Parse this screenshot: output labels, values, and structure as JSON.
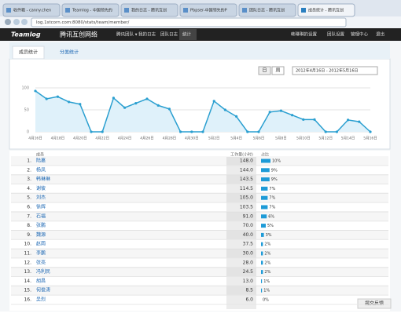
{
  "browser": {
    "tabs": [
      "收件箱 - canny.chen",
      "Teamlog - 中国领先的",
      "我的日志 - 腾讯互创",
      "Pbpser-中国领先的P",
      "团队日志 - 腾讯互创",
      "成员统计 - 腾讯互创"
    ],
    "url": "log.1stcorn.com:8080/stats/team/member/"
  },
  "header": {
    "logo": "Teamlog",
    "site": "腾讯互创网络",
    "nav": [
      "腾讯团队 ▾",
      "我的日志",
      "团队日志",
      "统计"
    ],
    "right": [
      "韩琳琳的设置",
      "团队设置",
      "管理中心",
      "退出"
    ]
  },
  "subtabs": [
    "成员统计",
    "分类统计"
  ],
  "controls": {
    "day": "日",
    "week": "周",
    "range": "2012年4月16日 - 2012年5月16日"
  },
  "chart_data": {
    "type": "line",
    "color": "#2a9fd0",
    "grid": true,
    "categories": [
      "4月16日",
      null,
      "4月18日",
      null,
      "4月20日",
      null,
      "4月22日",
      null,
      "4月24日",
      null,
      "4月26日",
      null,
      "4月28日",
      null,
      "4月30日",
      null,
      "5月2日",
      null,
      "5月4日",
      null,
      "5月6日",
      null,
      "5月8日",
      null,
      "5月10日",
      null,
      "5月12日",
      null,
      "5月14日",
      null,
      "5月16日"
    ],
    "values": [
      93,
      75,
      80,
      68,
      63,
      0,
      0,
      77,
      55,
      65,
      75,
      60,
      52,
      0,
      0,
      0,
      70,
      50,
      35,
      0,
      0,
      45,
      48,
      38,
      28,
      28,
      0,
      0,
      27,
      23,
      0
    ],
    "ylim": [
      0,
      110
    ],
    "yticks": [
      0,
      50,
      100
    ]
  },
  "table": {
    "headers": [
      "成员",
      "工作量(小时)",
      "占比"
    ],
    "rows": [
      {
        "rank": "1.",
        "name": "陆嘉",
        "hours": "148.0",
        "share": 10,
        "share_label": "10%"
      },
      {
        "rank": "2.",
        "name": "杨凤",
        "hours": "144.0",
        "share": 9,
        "share_label": "9%"
      },
      {
        "rank": "3.",
        "name": "韩琳琳",
        "hours": "143.5",
        "share": 9,
        "share_label": "9%"
      },
      {
        "rank": "4.",
        "name": "谢彼",
        "hours": "114.5",
        "share": 7,
        "share_label": "7%"
      },
      {
        "rank": "5.",
        "name": "刘杰",
        "hours": "105.0",
        "share": 7,
        "share_label": "7%"
      },
      {
        "rank": "6.",
        "name": "徐辉",
        "hours": "103.5",
        "share": 7,
        "share_label": "7%"
      },
      {
        "rank": "7.",
        "name": "石福",
        "hours": "91.0",
        "share": 6,
        "share_label": "6%"
      },
      {
        "rank": "8.",
        "name": "张鹏",
        "hours": "70.0",
        "share": 5,
        "share_label": "5%"
      },
      {
        "rank": "9.",
        "name": "魏源",
        "hours": "40.0",
        "share": 3,
        "share_label": "3%"
      },
      {
        "rank": "10.",
        "name": "赵雨",
        "hours": "37.5",
        "share": 2,
        "share_label": "2%"
      },
      {
        "rank": "11.",
        "name": "李鹏",
        "hours": "30.0",
        "share": 2,
        "share_label": "2%"
      },
      {
        "rank": "12.",
        "name": "张亮",
        "hours": "28.0",
        "share": 2,
        "share_label": "2%"
      },
      {
        "rank": "13.",
        "name": "冯利民",
        "hours": "24.5",
        "share": 2,
        "share_label": "2%"
      },
      {
        "rank": "14.",
        "name": "胡昌",
        "hours": "13.0",
        "share": 1,
        "share_label": "1%"
      },
      {
        "rank": "15.",
        "name": "何俊涛",
        "hours": "8.5",
        "share": 1,
        "share_label": "1%"
      },
      {
        "rank": "16.",
        "name": "吴烈",
        "hours": "6.0",
        "share": 0,
        "share_label": "0%"
      }
    ]
  },
  "feedback": "提交反馈"
}
